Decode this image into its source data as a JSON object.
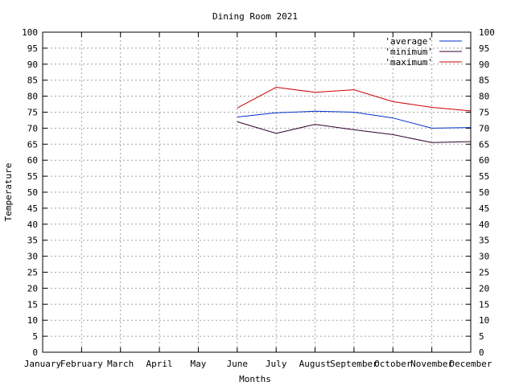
{
  "chart_data": {
    "type": "line",
    "title": "Dining Room 2021",
    "xlabel": "Months",
    "ylabel": "Temperature",
    "categories": [
      "January",
      "February",
      "March",
      "April",
      "May",
      "June",
      "July",
      "August",
      "September",
      "October",
      "November",
      "December"
    ],
    "ylim": [
      0,
      100
    ],
    "yticks": [
      0,
      5,
      10,
      15,
      20,
      25,
      30,
      35,
      40,
      45,
      50,
      55,
      60,
      65,
      70,
      75,
      80,
      85,
      90,
      95,
      100
    ],
    "grid": true,
    "legend_position": "top-right",
    "series": [
      {
        "name": "'average'",
        "color": "#0033cc",
        "values": [
          null,
          null,
          null,
          null,
          null,
          73.5,
          74.8,
          75.3,
          75.0,
          73.2,
          70.0,
          70.2
        ]
      },
      {
        "name": "'minimum'",
        "color": "#330033",
        "values": [
          null,
          null,
          null,
          null,
          null,
          72.0,
          68.4,
          71.2,
          69.5,
          68.0,
          65.5,
          65.8
        ]
      },
      {
        "name": "'maximum'",
        "color": "#cc0000",
        "values": [
          null,
          null,
          null,
          null,
          null,
          76.3,
          82.8,
          81.2,
          82.0,
          78.3,
          76.5,
          75.4
        ]
      }
    ]
  }
}
